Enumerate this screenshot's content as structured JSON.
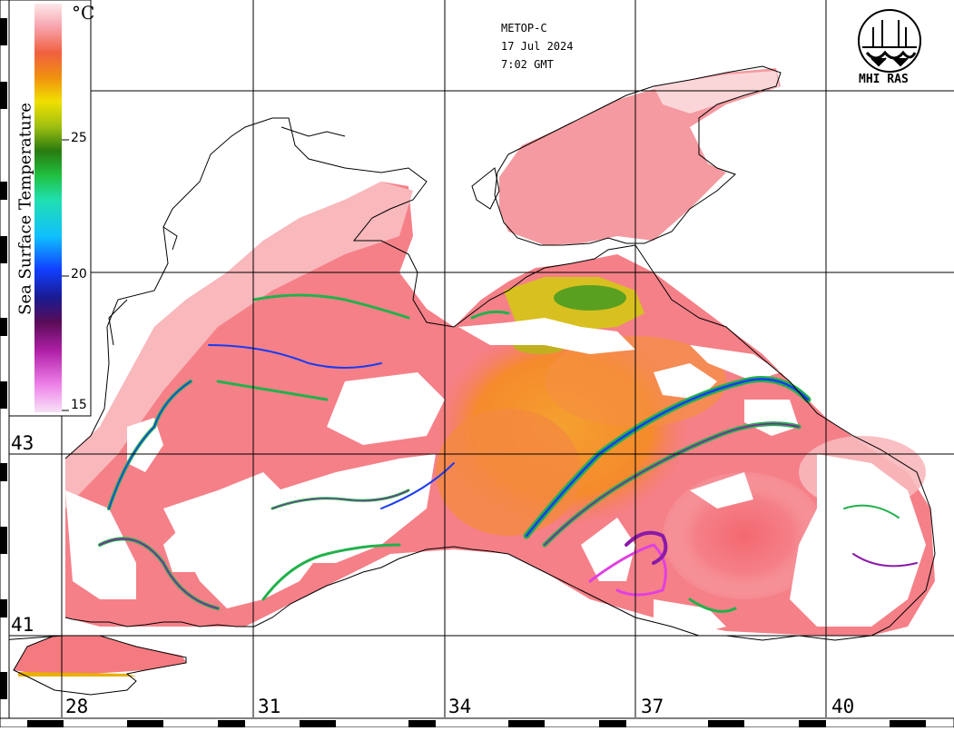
{
  "header": {
    "satellite": "METOP-C",
    "date": "17 Jul 2024",
    "time": "7:02 GMT"
  },
  "logo": {
    "text": "MHI RAS"
  },
  "legend": {
    "title": "Sea Surface Temperature",
    "unit": "°C",
    "ticks": [
      "25",
      "20",
      "15"
    ]
  },
  "axes": {
    "longitude_labels": [
      "28",
      "31",
      "34",
      "37",
      "40"
    ],
    "latitude_labels": [
      "43",
      "41"
    ]
  },
  "colors": {
    "background": "#ffffff",
    "land": "#ffffff",
    "coastline": "#000000",
    "grid": "#000000",
    "warm_pink": "#f47a80",
    "light_pink": "#f9c8cc",
    "orange": "#f39a28",
    "green": "#22b14c",
    "blue": "#1a3cf0",
    "purple": "#8b1aa8",
    "magenta": "#e040e0"
  }
}
